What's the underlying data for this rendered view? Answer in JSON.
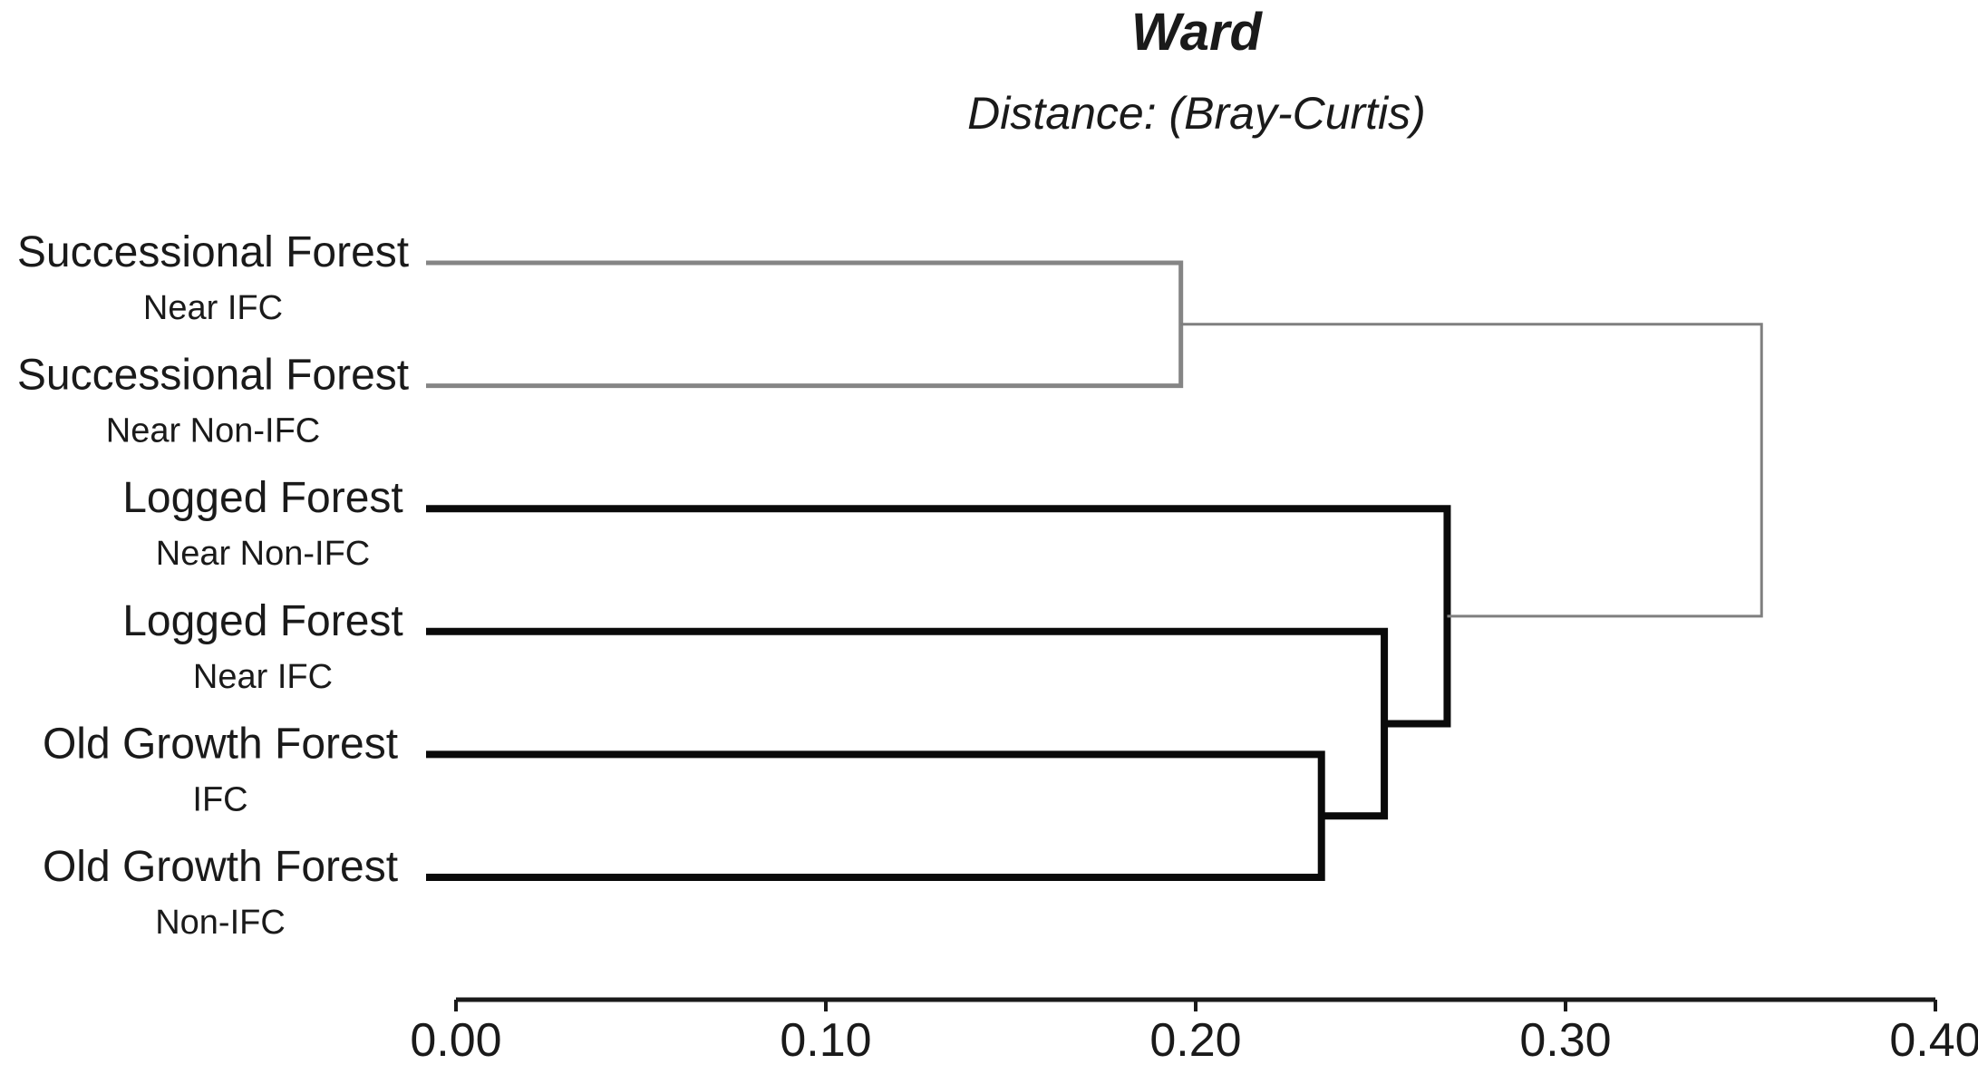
{
  "chart_data": {
    "type": "dendrogram",
    "orientation": "horizontal",
    "title": "Ward",
    "subtitle": "Distance: (Bray-Curtis)",
    "distance_axis": {
      "min": 0.0,
      "max": 0.4,
      "ticks": [
        {
          "value": 0.0,
          "label": "0.00"
        },
        {
          "value": 0.1,
          "label": "0.10"
        },
        {
          "value": 0.2,
          "label": "0.20"
        },
        {
          "value": 0.3,
          "label": "0.30"
        },
        {
          "value": 0.4,
          "label": "0.40"
        }
      ]
    },
    "colors": {
      "gray_cluster": "#858585",
      "root_link": "#7f7f7f",
      "black_cluster": "#0a0a0a",
      "axis": "#1a1a1a",
      "text": "#1a1a1a"
    },
    "leaves": [
      {
        "id": "leaf0",
        "name": "Successional Forest",
        "sub": "Near IFC"
      },
      {
        "id": "leaf1",
        "name": "Successional Forest",
        "sub": "Near Non-IFC"
      },
      {
        "id": "leaf2",
        "name": "Logged Forest",
        "sub": "Near Non-IFC"
      },
      {
        "id": "leaf3",
        "name": "Logged Forest",
        "sub": "Near IFC"
      },
      {
        "id": "leaf4",
        "name": "Old Growth Forest",
        "sub": "IFC"
      },
      {
        "id": "leaf5",
        "name": "Old Growth Forest",
        "sub": "Non-IFC"
      }
    ],
    "merges": [
      {
        "id": "m1",
        "children": [
          "leaf0",
          "leaf1"
        ],
        "distance": 0.196,
        "color": "#858585",
        "stroke": 5
      },
      {
        "id": "m2",
        "children": [
          "leaf4",
          "leaf5"
        ],
        "distance": 0.234,
        "color": "#0a0a0a",
        "stroke": 8
      },
      {
        "id": "m3",
        "children": [
          "leaf3",
          "m2"
        ],
        "distance": 0.251,
        "color": "#0a0a0a",
        "stroke": 8
      },
      {
        "id": "m4",
        "children": [
          "leaf2",
          "m3"
        ],
        "distance": 0.268,
        "color": "#0a0a0a",
        "stroke": 8
      },
      {
        "id": "root",
        "children": [
          "m1",
          "m4"
        ],
        "distance": 0.353,
        "color": "#7f7f7f",
        "stroke": 3
      }
    ]
  }
}
